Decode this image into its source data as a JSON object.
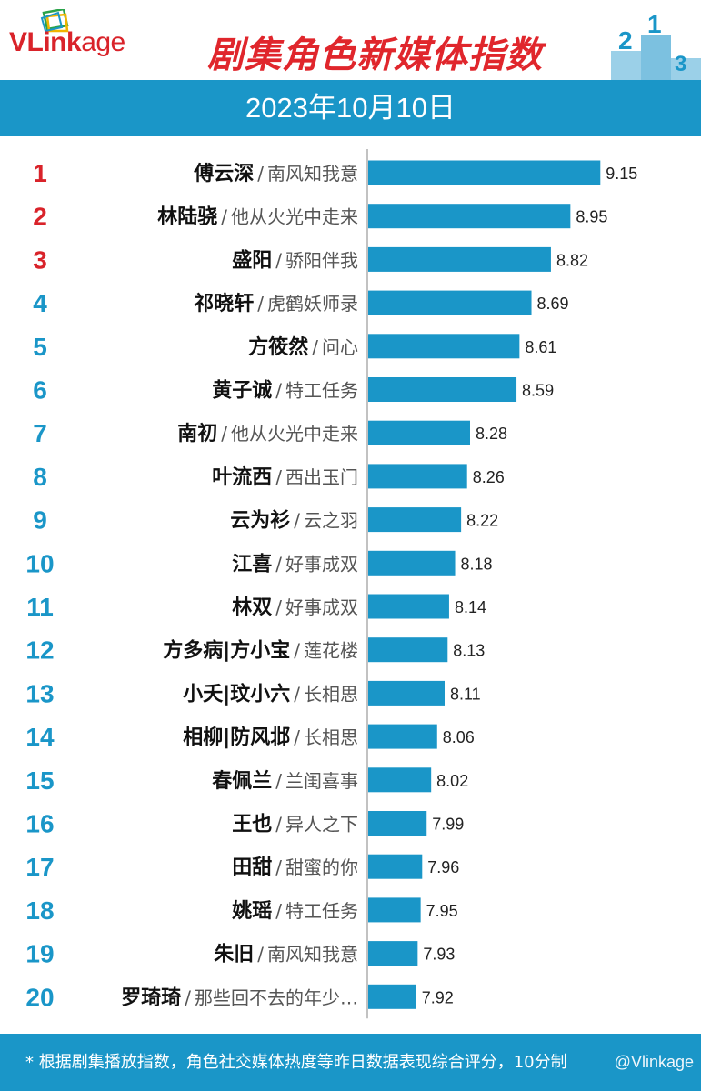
{
  "header": {
    "logo_v": "V",
    "logo_link": "Link",
    "logo_age": "age",
    "title": "剧集角色新媒体指数",
    "podium": [
      "2",
      "1",
      "3"
    ]
  },
  "date": "2023年10月10日",
  "chart_data": {
    "type": "bar",
    "orientation": "horizontal",
    "xlim": [
      7.6,
      9.3
    ],
    "colors": {
      "bar": "#1a96c8",
      "rank_top": "#d9232a",
      "rank_other": "#1a96c8"
    },
    "rows": [
      {
        "rank": "1",
        "name": "傅云深",
        "show": "南风知我意",
        "value": 9.15
      },
      {
        "rank": "2",
        "name": "林陆骁",
        "show": "他从火光中走来",
        "value": 8.95
      },
      {
        "rank": "3",
        "name": "盛阳",
        "show": "骄阳伴我",
        "value": 8.82
      },
      {
        "rank": "4",
        "name": "祁晓轩",
        "show": "虎鹤妖师录",
        "value": 8.69
      },
      {
        "rank": "5",
        "name": "方筱然",
        "show": "问心",
        "value": 8.61
      },
      {
        "rank": "6",
        "name": "黄子诚",
        "show": "特工任务",
        "value": 8.59
      },
      {
        "rank": "7",
        "name": "南初",
        "show": "他从火光中走来",
        "value": 8.28
      },
      {
        "rank": "8",
        "name": "叶流西",
        "show": "西出玉门",
        "value": 8.26
      },
      {
        "rank": "9",
        "name": "云为衫",
        "show": "云之羽",
        "value": 8.22
      },
      {
        "rank": "10",
        "name": "江喜",
        "show": "好事成双",
        "value": 8.18
      },
      {
        "rank": "11",
        "name": "林双",
        "show": "好事成双",
        "value": 8.14
      },
      {
        "rank": "12",
        "name": "方多病|方小宝",
        "show": "莲花楼",
        "value": 8.13
      },
      {
        "rank": "13",
        "name": "小夭|玟小六",
        "show": "长相思",
        "value": 8.11
      },
      {
        "rank": "14",
        "name": "相柳|防风邶",
        "show": "长相思",
        "value": 8.06
      },
      {
        "rank": "15",
        "name": "春佩兰",
        "show": "兰闺喜事",
        "value": 8.02
      },
      {
        "rank": "16",
        "name": "王也",
        "show": "异人之下",
        "value": 7.99
      },
      {
        "rank": "17",
        "name": "田甜",
        "show": "甜蜜的你",
        "value": 7.96
      },
      {
        "rank": "18",
        "name": "姚瑶",
        "show": "特工任务",
        "value": 7.95
      },
      {
        "rank": "19",
        "name": "朱旧",
        "show": "南风知我意",
        "value": 7.93
      },
      {
        "rank": "20",
        "name": "罗琦琦",
        "show": "那些回不去的年少…",
        "value": 7.92
      }
    ]
  },
  "footer": {
    "note": "* 根据剧集播放指数，角色社交媒体热度等昨日数据表现综合评分，10分制",
    "watermark": "@Vlinkage"
  }
}
